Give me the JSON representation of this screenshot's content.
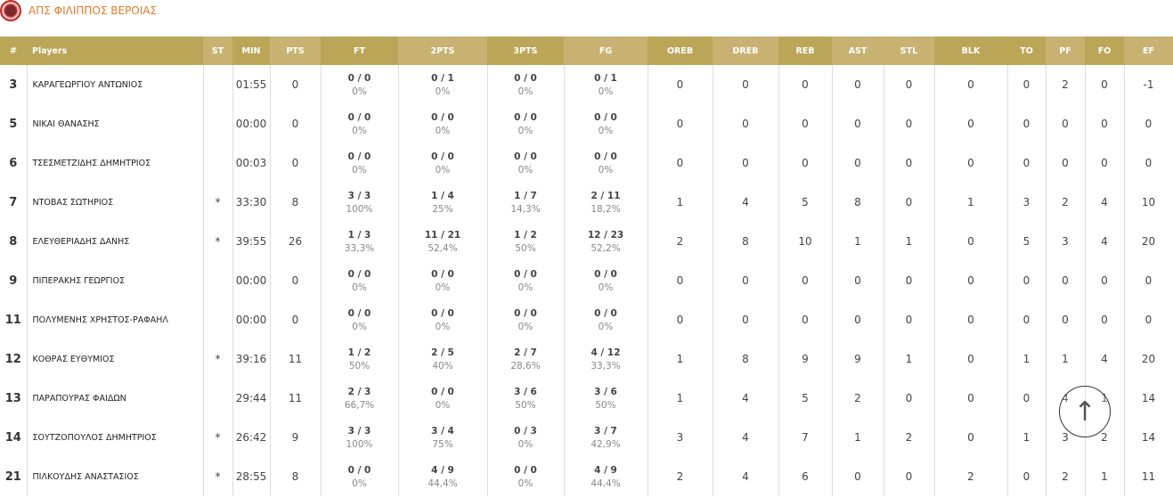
{
  "team": {
    "name": "ΑΠΣ ΦΙΛΙΠΠΟΣ ΒΕΡΟΙΑΣ"
  },
  "columns": [
    "#",
    "Players",
    "ST",
    "MIN",
    "PTS",
    "FT",
    "2PTS",
    "3PTS",
    "FG",
    "OREB",
    "DREB",
    "REB",
    "AST",
    "STL",
    "BLK",
    "TO",
    "PF",
    "FO",
    "EF"
  ],
  "rows": [
    {
      "num": "3",
      "name": "ΚΑΡΑΓΕΩΡΓΙΟΥ ΑΝΤΩΝΙΟΣ",
      "st": "",
      "min": "01:55",
      "pts": "0",
      "ft": [
        "0 / 0",
        "0%"
      ],
      "p2": [
        "0 / 1",
        "0%"
      ],
      "p3": [
        "0 / 0",
        "0%"
      ],
      "fg": [
        "0 / 1",
        "0%"
      ],
      "oreb": "0",
      "dreb": "0",
      "reb": "0",
      "ast": "0",
      "stl": "0",
      "blk": "0",
      "to": "0",
      "pf": "2",
      "fo": "0",
      "ef": "-1"
    },
    {
      "num": "5",
      "name": "ΝΙΚΑΙ ΘΑΝΑΣΗΣ",
      "st": "",
      "min": "00:00",
      "pts": "0",
      "ft": [
        "0 / 0",
        "0%"
      ],
      "p2": [
        "0 / 0",
        "0%"
      ],
      "p3": [
        "0 / 0",
        "0%"
      ],
      "fg": [
        "0 / 0",
        "0%"
      ],
      "oreb": "0",
      "dreb": "0",
      "reb": "0",
      "ast": "0",
      "stl": "0",
      "blk": "0",
      "to": "0",
      "pf": "0",
      "fo": "0",
      "ef": "0"
    },
    {
      "num": "6",
      "name": "ΤΣΕΣΜΕΤΖΙΔΗΣ ΔΗΜΗΤΡΙΟΣ",
      "st": "",
      "min": "00:03",
      "pts": "0",
      "ft": [
        "0 / 0",
        "0%"
      ],
      "p2": [
        "0 / 0",
        "0%"
      ],
      "p3": [
        "0 / 0",
        "0%"
      ],
      "fg": [
        "0 / 0",
        "0%"
      ],
      "oreb": "0",
      "dreb": "0",
      "reb": "0",
      "ast": "0",
      "stl": "0",
      "blk": "0",
      "to": "0",
      "pf": "0",
      "fo": "0",
      "ef": "0"
    },
    {
      "num": "7",
      "name": "ΝΤΟΒΑΣ ΣΩΤΗΡΙΟΣ",
      "st": "*",
      "min": "33:30",
      "pts": "8",
      "ft": [
        "3 / 3",
        "100%"
      ],
      "p2": [
        "1 / 4",
        "25%"
      ],
      "p3": [
        "1 / 7",
        "14,3%"
      ],
      "fg": [
        "2 / 11",
        "18,2%"
      ],
      "oreb": "1",
      "dreb": "4",
      "reb": "5",
      "ast": "8",
      "stl": "0",
      "blk": "1",
      "to": "3",
      "pf": "2",
      "fo": "4",
      "ef": "10"
    },
    {
      "num": "8",
      "name": "ΕΛΕΥΘΕΡΙΑΔΗΣ ΔΑΝΗΣ",
      "st": "*",
      "min": "39:55",
      "pts": "26",
      "ft": [
        "1 / 3",
        "33,3%"
      ],
      "p2": [
        "11 / 21",
        "52,4%"
      ],
      "p3": [
        "1 / 2",
        "50%"
      ],
      "fg": [
        "12 / 23",
        "52,2%"
      ],
      "oreb": "2",
      "dreb": "8",
      "reb": "10",
      "ast": "1",
      "stl": "1",
      "blk": "0",
      "to": "5",
      "pf": "3",
      "fo": "4",
      "ef": "20"
    },
    {
      "num": "9",
      "name": "ΠΙΠΕΡΑΚΗΣ ΓΕΩΡΓΙΟΣ",
      "st": "",
      "min": "00:00",
      "pts": "0",
      "ft": [
        "0 / 0",
        "0%"
      ],
      "p2": [
        "0 / 0",
        "0%"
      ],
      "p3": [
        "0 / 0",
        "0%"
      ],
      "fg": [
        "0 / 0",
        "0%"
      ],
      "oreb": "0",
      "dreb": "0",
      "reb": "0",
      "ast": "0",
      "stl": "0",
      "blk": "0",
      "to": "0",
      "pf": "0",
      "fo": "0",
      "ef": "0"
    },
    {
      "num": "11",
      "name": "ΠΟΛΥΜΕΝΗΣ ΧΡΗΣΤΟΣ-ΡΑΦΑΗΛ",
      "st": "",
      "min": "00:00",
      "pts": "0",
      "ft": [
        "0 / 0",
        "0%"
      ],
      "p2": [
        "0 / 0",
        "0%"
      ],
      "p3": [
        "0 / 0",
        "0%"
      ],
      "fg": [
        "0 / 0",
        "0%"
      ],
      "oreb": "0",
      "dreb": "0",
      "reb": "0",
      "ast": "0",
      "stl": "0",
      "blk": "0",
      "to": "0",
      "pf": "0",
      "fo": "0",
      "ef": "0"
    },
    {
      "num": "12",
      "name": "ΚΟΘΡΑΣ ΕΥΘΥΜΙΟΣ",
      "st": "*",
      "min": "39:16",
      "pts": "11",
      "ft": [
        "1 / 2",
        "50%"
      ],
      "p2": [
        "2 / 5",
        "40%"
      ],
      "p3": [
        "2 / 7",
        "28,6%"
      ],
      "fg": [
        "4 / 12",
        "33,3%"
      ],
      "oreb": "1",
      "dreb": "8",
      "reb": "9",
      "ast": "9",
      "stl": "1",
      "blk": "0",
      "to": "1",
      "pf": "1",
      "fo": "4",
      "ef": "20"
    },
    {
      "num": "13",
      "name": "ΠΑΡΑΠΟΥΡΑΣ ΦΑΙΔΩΝ",
      "st": "",
      "min": "29:44",
      "pts": "11",
      "ft": [
        "2 / 3",
        "66,7%"
      ],
      "p2": [
        "0 / 0",
        "0%"
      ],
      "p3": [
        "3 / 6",
        "50%"
      ],
      "fg": [
        "3 / 6",
        "50%"
      ],
      "oreb": "1",
      "dreb": "4",
      "reb": "5",
      "ast": "2",
      "stl": "0",
      "blk": "0",
      "to": "0",
      "pf": "4",
      "fo": "1",
      "ef": "14"
    },
    {
      "num": "14",
      "name": "ΣΟΥΤΖΟΠΟΥΛΟΣ ΔΗΜΗΤΡΙΟΣ",
      "st": "*",
      "min": "26:42",
      "pts": "9",
      "ft": [
        "3 / 3",
        "100%"
      ],
      "p2": [
        "3 / 4",
        "75%"
      ],
      "p3": [
        "0 / 3",
        "0%"
      ],
      "fg": [
        "3 / 7",
        "42,9%"
      ],
      "oreb": "3",
      "dreb": "4",
      "reb": "7",
      "ast": "1",
      "stl": "2",
      "blk": "0",
      "to": "1",
      "pf": "3",
      "fo": "2",
      "ef": "14"
    },
    {
      "num": "21",
      "name": "ΠΙΛΚΟΥΔΗΣ ΑΝΑΣΤΑΣΙΟΣ",
      "st": "*",
      "min": "28:55",
      "pts": "8",
      "ft": [
        "0 / 0",
        "0%"
      ],
      "p2": [
        "4 / 9",
        "44,4%"
      ],
      "p3": [
        "0 / 0",
        "0%"
      ],
      "fg": [
        "4 / 9",
        "44,4%"
      ],
      "oreb": "2",
      "dreb": "4",
      "reb": "6",
      "ast": "0",
      "stl": "0",
      "blk": "2",
      "to": "0",
      "pf": "2",
      "fo": "1",
      "ef": "11"
    }
  ],
  "colors": {
    "header_dark": "#bba658",
    "header_light": "#c8b271",
    "team_name": "#e8782a"
  },
  "scroll_top_icon": "arrow-up-icon"
}
